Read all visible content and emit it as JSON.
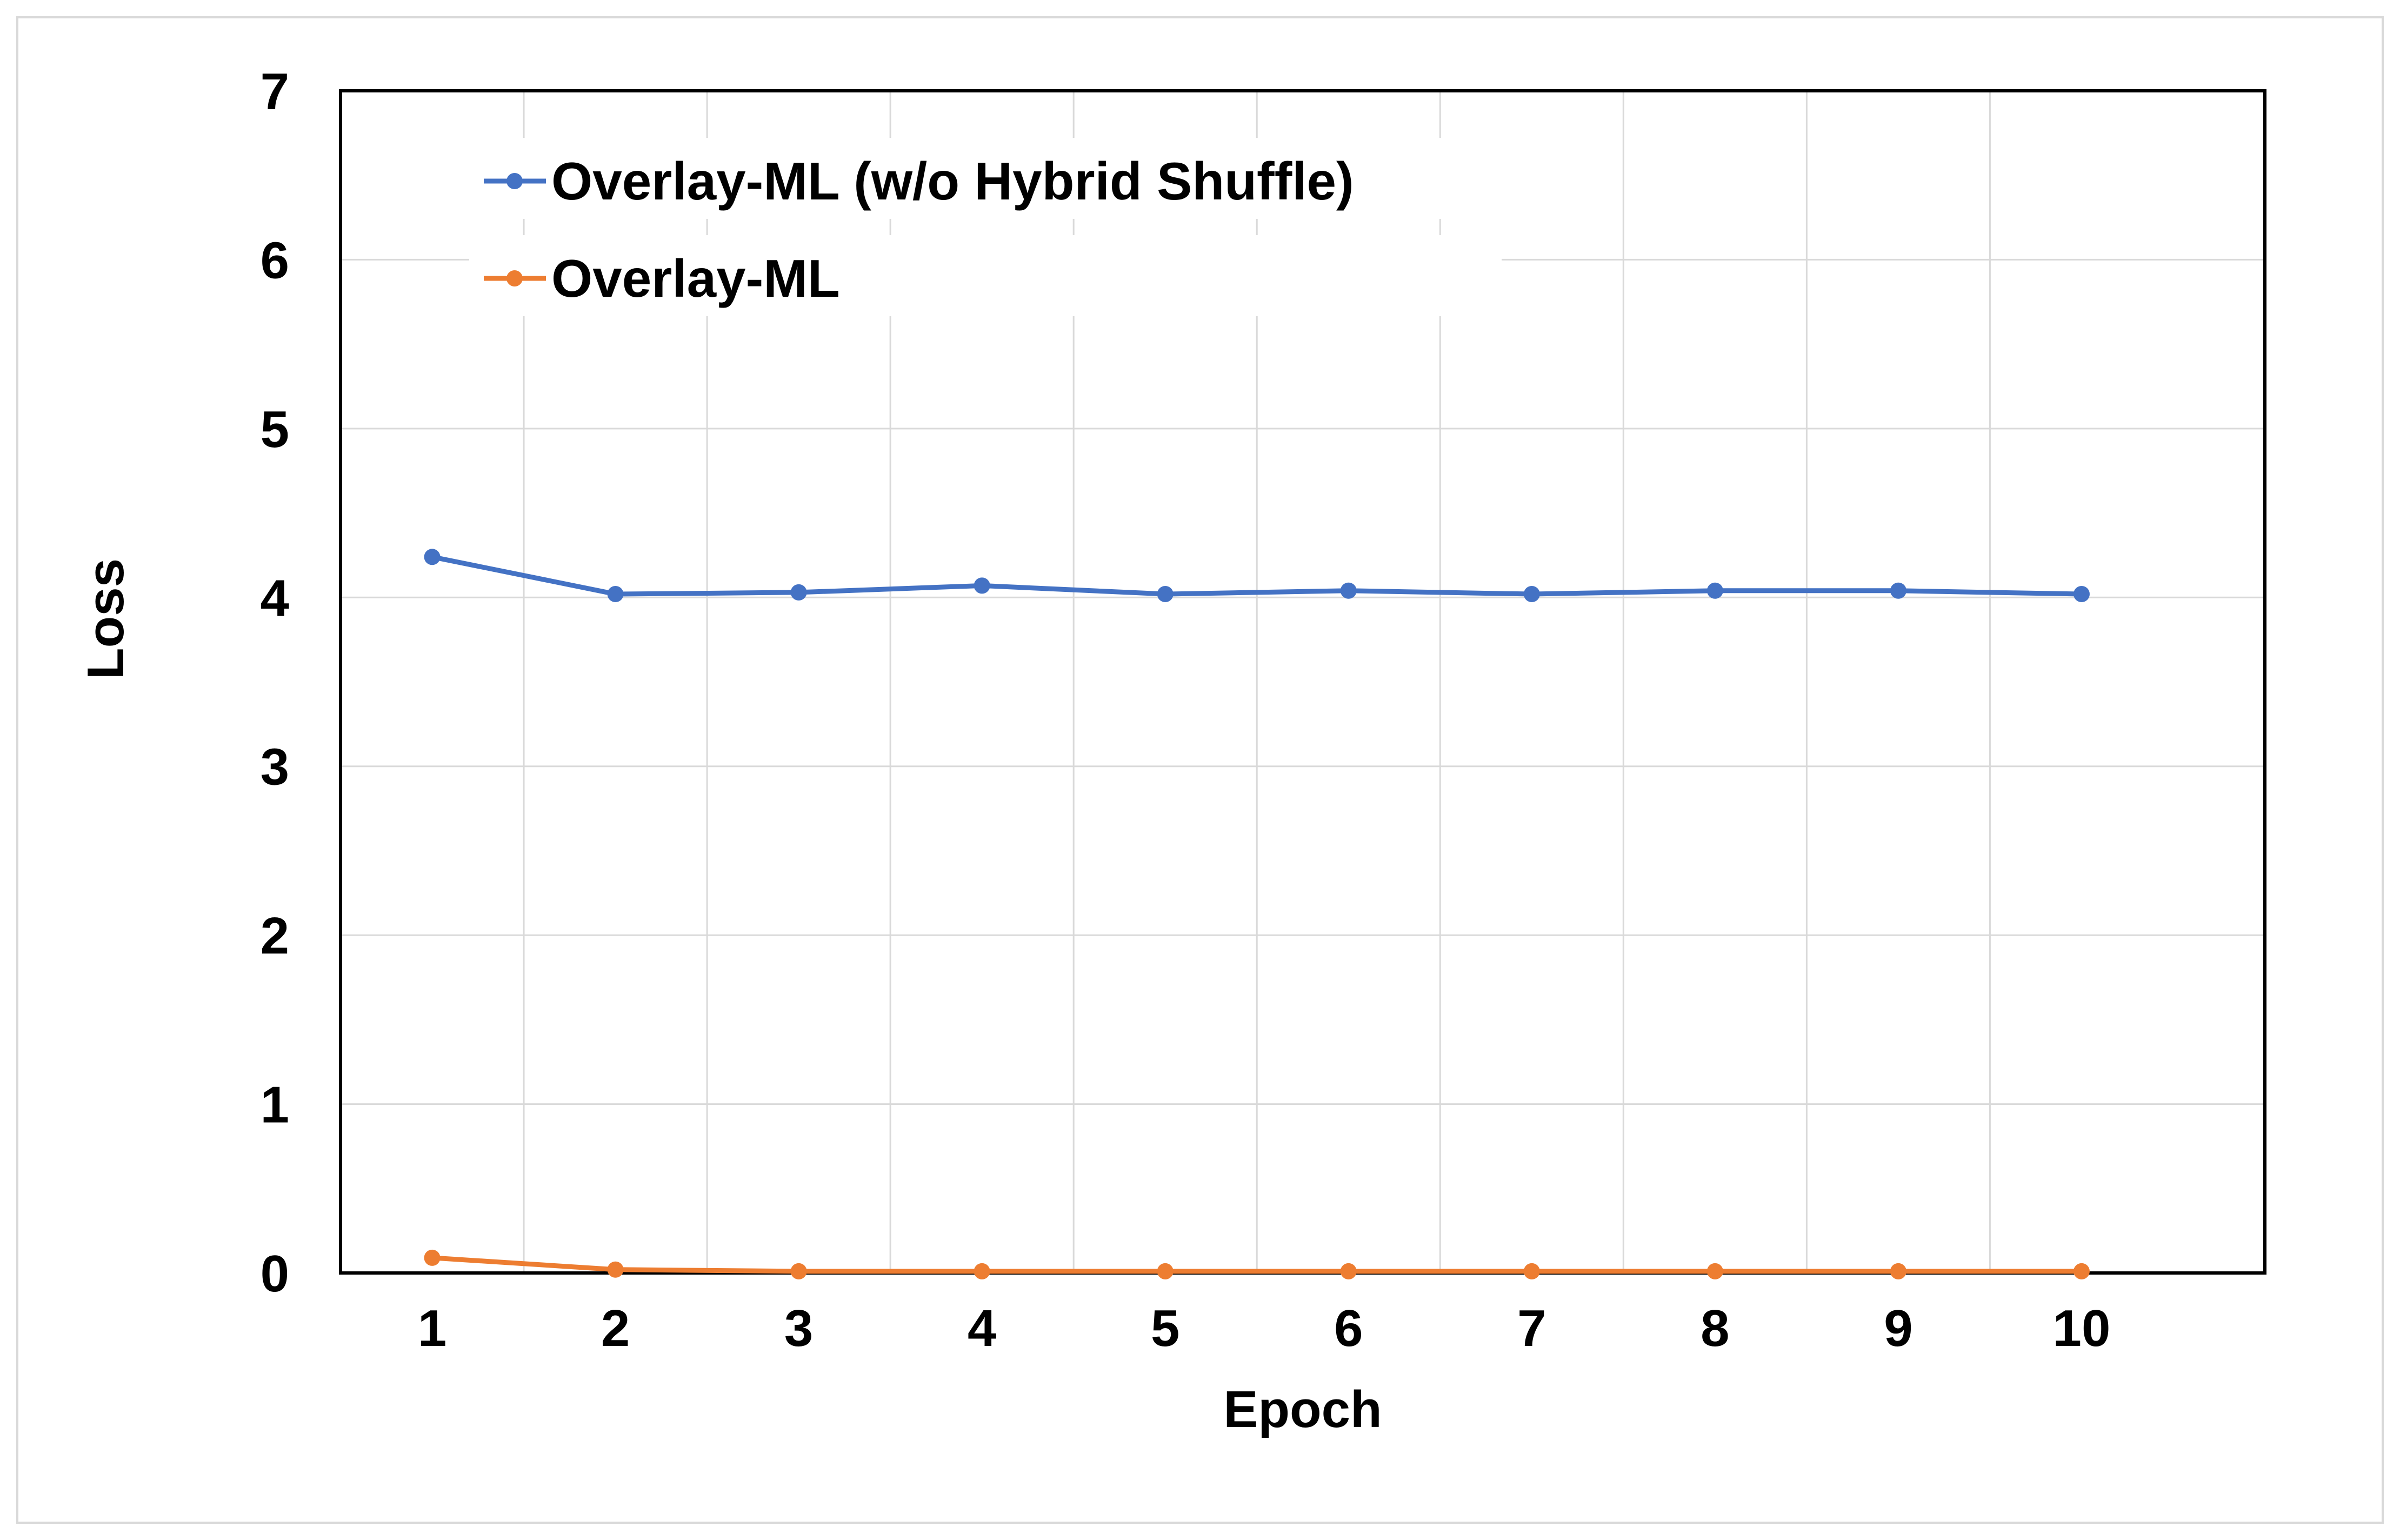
{
  "chart_data": {
    "type": "line",
    "title": "",
    "xlabel": "Epoch",
    "ylabel": "Loss",
    "categories": [
      "1",
      "2",
      "3",
      "4",
      "5",
      "6",
      "7",
      "8",
      "9",
      "10"
    ],
    "ylim": [
      0,
      7
    ],
    "yticks": [
      "0",
      "1",
      "2",
      "3",
      "4",
      "5",
      "6",
      "7"
    ],
    "grid": true,
    "legend_position": "top-left",
    "series": [
      {
        "name": "Overlay-ML (w/o Hybrid Shuffle)",
        "color": "#4472c4",
        "values": [
          4.24,
          4.02,
          4.03,
          4.07,
          4.02,
          4.04,
          4.02,
          4.04,
          4.04,
          4.02
        ]
      },
      {
        "name": "Overlay-ML",
        "color": "#ed7d31",
        "values": [
          0.09,
          0.02,
          0.01,
          0.01,
          0.01,
          0.01,
          0.01,
          0.01,
          0.01,
          0.01
        ]
      }
    ]
  }
}
